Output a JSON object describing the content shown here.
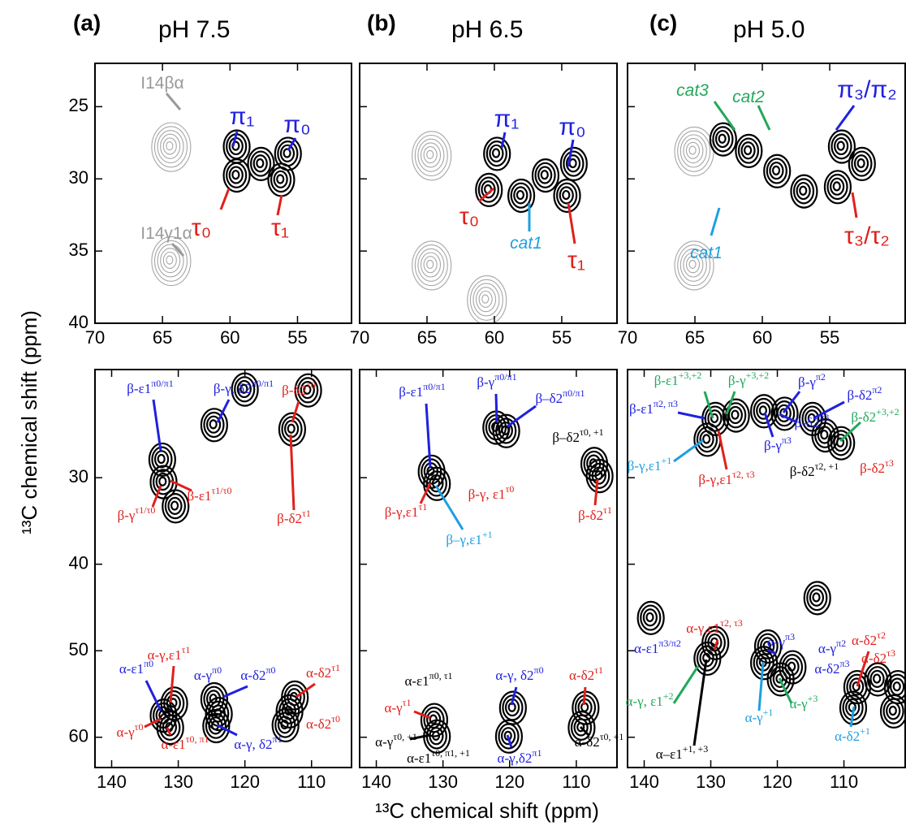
{
  "chart_data": [
    {
      "type": "contour",
      "panel_label": "(a)",
      "title": "pH 7.5",
      "ylabel": "¹³C chemical shift (ppm)",
      "xlim": [
        70,
        51
      ],
      "xticks": [
        70,
        65,
        60,
        55
      ],
      "ylim": [
        22,
        40
      ],
      "yticks": [
        25,
        30,
        35,
        40
      ],
      "ytick_labels": true,
      "peaks": [
        {
          "color": "#a6a6a6",
          "x": [
            64.5,
            64.5
          ],
          "y": [
            27.7,
            35.6
          ]
        },
        {
          "color": "#000000",
          "x": [
            59.6,
            59.6,
            56.3,
            55.8,
            57.8
          ],
          "y": [
            27.7,
            29.7,
            30.0,
            28.2,
            28.9
          ]
        }
      ],
      "annotations": [
        {
          "text": "I14βα",
          "color": "#999999"
        },
        {
          "text": "I14γ1α",
          "color": "#999999"
        },
        {
          "text": "π₁",
          "color": "#2020e0"
        },
        {
          "text": "π₀",
          "color": "#2020e0"
        },
        {
          "text": "τ₀",
          "color": "#e0201c"
        },
        {
          "text": "τ₁",
          "color": "#e0201c"
        }
      ]
    },
    {
      "type": "contour",
      "panel_label": "(b)",
      "title": "pH 6.5",
      "xlim": [
        70,
        50.9
      ],
      "xticks": [
        70,
        65,
        60,
        55
      ],
      "ylim": [
        22,
        40
      ],
      "yticks": [
        25,
        30,
        35,
        40
      ],
      "ytick_labels": false,
      "peaks": [
        {
          "color": "#a6a6a6",
          "x": [
            64.8,
            64.8,
            60.7
          ],
          "y": [
            28.3,
            35.9,
            38.3
          ]
        },
        {
          "color": "#000000",
          "x": [
            59.9,
            54.7,
            58.1,
            60.5,
            54.2,
            56.3
          ],
          "y": [
            28.2,
            31.1,
            31.1,
            30.7,
            28.9,
            29.7
          ]
        }
      ],
      "annotations": [
        {
          "text": "π₁",
          "color": "#2020e0"
        },
        {
          "text": "π₀",
          "color": "#2020e0"
        },
        {
          "text": "τ₀",
          "color": "#e0201c"
        },
        {
          "text": "cat1",
          "color": "#1e9fe0",
          "style": "italic"
        },
        {
          "text": "τ₁",
          "color": "#e0201c"
        }
      ]
    },
    {
      "type": "contour",
      "panel_label": "(c)",
      "title": "pH 5.0",
      "xlim": [
        70,
        49.4
      ],
      "xticks": [
        70,
        65,
        60,
        55
      ],
      "ylim": [
        22,
        40
      ],
      "yticks": [
        25,
        30,
        35,
        40
      ],
      "ytick_labels": false,
      "peaks": [
        {
          "color": "#a6a6a6",
          "x": [
            65.2,
            65.2
          ],
          "y": [
            28.0,
            35.9
          ]
        },
        {
          "color": "#000000",
          "x": [
            63.0,
            61.1,
            59.0,
            57.0,
            54.5,
            54.2,
            52.7
          ],
          "y": [
            27.2,
            28.0,
            29.4,
            30.8,
            30.5,
            27.7,
            28.9
          ]
        }
      ],
      "annotations": [
        {
          "text": "cat3",
          "color": "#22a85a",
          "style": "italic"
        },
        {
          "text": "cat2",
          "color": "#22a85a",
          "style": "italic"
        },
        {
          "text": "π₃/π₂",
          "color": "#2020e0"
        },
        {
          "text": "cat1",
          "color": "#1e9fe0",
          "style": "italic"
        },
        {
          "text": "τ₃/τ₂",
          "color": "#e0201c"
        }
      ]
    },
    {
      "type": "contour",
      "xlim": [
        142.5,
        104
      ],
      "xticks": [
        140,
        130,
        120,
        110
      ],
      "ylim": [
        17.5,
        63.5
      ],
      "yticks": [
        30,
        40,
        50,
        60
      ],
      "ytick_labels": true,
      "peaks": [
        {
          "color": "#000000",
          "x": [
            132.6,
            132.4,
            124.8,
            113.1,
            110.7,
            120.2,
            130.6,
            132.4,
            131.4,
            130.8,
            124.8,
            124.1,
            124.5,
            113.5,
            112.7,
            114.1
          ],
          "y": [
            27.8,
            30.4,
            23.8,
            24.3,
            19.8,
            19.7,
            33.2,
            57.4,
            58.8,
            56.0,
            55.5,
            57.2,
            58.6,
            56.9,
            55.3,
            58.5
          ]
        }
      ],
      "annotations": [
        {
          "text": "β-ε1",
          "sup": "π0/π1",
          "color": "#2020e0"
        },
        {
          "text": "β-γ, δ2",
          "sup": "π0/π1",
          "color": "#2020e0"
        },
        {
          "text": "β-δ2",
          "sup": "τ0",
          "color": "#e0201c"
        },
        {
          "text": "β-γ",
          "sup": "τ1/τ0",
          "color": "#e0201c"
        },
        {
          "text": "β-ε1",
          "sup": "τ1/τ0",
          "color": "#e0201c"
        },
        {
          "text": "β-δ2",
          "sup": "τ1",
          "color": "#e0201c"
        },
        {
          "text": "α-γ,ε1",
          "sup": "τ1",
          "color": "#e0201c"
        },
        {
          "text": "α-ε1",
          "sup": "π0",
          "color": "#2020e0"
        },
        {
          "text": "α-γ",
          "sup": "π0",
          "color": "#2020e0"
        },
        {
          "text": "α-δ2",
          "sup": "π0",
          "color": "#2020e0"
        },
        {
          "text": "α-δ2",
          "sup": "τ1",
          "color": "#e0201c"
        },
        {
          "text": "α-γ",
          "sup": "τ0",
          "color": "#e0201c"
        },
        {
          "text": "α-ε1",
          "sup": "τ0, π1",
          "color": "#e0201c"
        },
        {
          "text": "α-γ, δ2",
          "sup": "π1",
          "color": "#2020e0"
        },
        {
          "text": "α-δ2",
          "sup": "τ0",
          "color": "#e0201c"
        }
      ]
    },
    {
      "type": "contour",
      "xlabel": "¹³C chemical shift (ppm)",
      "xlim": [
        142.5,
        103.9
      ],
      "xticks": [
        140,
        130,
        120,
        110
      ],
      "ylim": [
        17.5,
        63.5
      ],
      "yticks": [
        30,
        40,
        50,
        60
      ],
      "ytick_labels": false,
      "peaks": [
        {
          "color": "#000000",
          "x": [
            131.9,
            131.1,
            122.2,
            120.7,
            106.7,
            107.5,
            131.5,
            131.1,
            119.7,
            120.3,
            108.8,
            109.4
          ],
          "y": [
            29.2,
            30.6,
            24.1,
            24.5,
            29.7,
            28.3,
            57.9,
            59.8,
            56.5,
            59.8,
            56.5,
            58.8
          ]
        }
      ],
      "annotations": [
        {
          "text": "β-ε1",
          "sup": "π0/π1",
          "color": "#2020e0"
        },
        {
          "text": "β-γ",
          "sup": "π0/π1",
          "color": "#2020e0"
        },
        {
          "text": "β–δ2",
          "sup": "π0/π1",
          "color": "#2020e0"
        },
        {
          "text": "β–δ2",
          "sup": "τ0, +1",
          "color": "#000000"
        },
        {
          "text": "β-γ,ε1",
          "sup": "τ1",
          "color": "#e0201c"
        },
        {
          "text": "β-γ, ε1",
          "sup": "τ0",
          "color": "#e0201c"
        },
        {
          "text": "β-δ2",
          "sup": "τ1",
          "color": "#e0201c"
        },
        {
          "text": "β–γ,ε1",
          "sup": "+1",
          "color": "#1e9fe0"
        },
        {
          "text": "α-ε1",
          "sup": "π0, τ1",
          "color": "#000000"
        },
        {
          "text": "α-γ, δ2",
          "sup": "π0",
          "color": "#2020e0"
        },
        {
          "text": "α-δ2",
          "sup": "τ1",
          "color": "#e0201c"
        },
        {
          "text": "α-γ",
          "sup": "τ1",
          "color": "#e0201c"
        },
        {
          "text": "α-γ",
          "sup": "τ0, +1",
          "color": "#000000"
        },
        {
          "text": "α-δ2",
          "sup": "τ0, +1",
          "color": "#000000"
        },
        {
          "text": "α-ε1",
          "sup": "τ0, π1, +1",
          "color": "#000000"
        },
        {
          "text": "α-γ,δ2",
          "sup": "π1",
          "color": "#2020e0"
        }
      ]
    },
    {
      "type": "contour",
      "xlim": [
        142.5,
        100.8
      ],
      "xticks": [
        140,
        130,
        120,
        110
      ],
      "ylim": [
        17.5,
        63.5
      ],
      "yticks": [
        30,
        40,
        50,
        60
      ],
      "ytick_labels": false,
      "peaks": [
        {
          "color": "#000000",
          "x": [
            130.7,
            129.5,
            126.4,
            122.2,
            119.1,
            114.9,
            113.0,
            110.6,
            129.5,
            130.7,
            121.6,
            122.2,
            117.9,
            119.7,
            108.2,
            108.8,
            105.1,
            102.1,
            102.7,
            139.2,
            114.2
          ],
          "y": [
            25.5,
            23.1,
            22.7,
            22.2,
            22.5,
            23.1,
            25.0,
            25.9,
            49.0,
            50.8,
            49.4,
            51.3,
            51.8,
            53.2,
            54.1,
            56.5,
            53.2,
            54.1,
            56.9,
            46.1,
            43.8
          ]
        }
      ],
      "annotations": [
        {
          "text": "β-ε1",
          "sup": "+3,+2",
          "color": "#22a85a"
        },
        {
          "text": "β-γ",
          "sup": "+3,+2",
          "color": "#22a85a"
        },
        {
          "text": "β-γ",
          "sup": "π2",
          "color": "#2020e0"
        },
        {
          "text": "β-ε1",
          "sup": "π2, π3",
          "color": "#2020e0"
        },
        {
          "text": "β-δ2",
          "sup": "π2",
          "color": "#2020e0"
        },
        {
          "text": "β-δ2",
          "sup": "+3,+2",
          "color": "#22a85a"
        },
        {
          "text": "β-δ2",
          "sup": "π3",
          "color": "#2020e0"
        },
        {
          "text": "β-γ",
          "sup": "π3",
          "color": "#2020e0"
        },
        {
          "text": "β-γ,ε1",
          "sup": "+1",
          "color": "#1e9fe0"
        },
        {
          "text": "β-γ,ε1",
          "sup": "τ2, τ3",
          "color": "#e0201c"
        },
        {
          "text": "β-δ2",
          "sup": "τ2, +1",
          "color": "#000000"
        },
        {
          "text": "β-δ2",
          "sup": "τ3",
          "color": "#e0201c"
        },
        {
          "text": "α-γ,ε1",
          "sup": "τ2, τ3",
          "color": "#e0201c"
        },
        {
          "text": "α-ε1",
          "sup": "π3/π2",
          "color": "#2020e0"
        },
        {
          "text": "α-γ",
          "sup": "π3",
          "color": "#2020e0"
        },
        {
          "text": "α-γ",
          "sup": "π2",
          "color": "#2020e0"
        },
        {
          "text": "α-δ2",
          "sup": "π3",
          "color": "#2020e0"
        },
        {
          "text": "α-δ2",
          "sup": "τ2",
          "color": "#e0201c"
        },
        {
          "text": "α-δ2",
          "sup": "τ3",
          "color": "#e0201c"
        },
        {
          "text": "α-γ, ε1",
          "sup": "+2",
          "color": "#22a85a"
        },
        {
          "text": "α-γ",
          "sup": "+3",
          "color": "#22a85a"
        },
        {
          "text": "α-γ",
          "sup": "+1",
          "color": "#1e9fe0"
        },
        {
          "text": "α-δ2",
          "sup": "+1",
          "color": "#1e9fe0"
        },
        {
          "text": "α–ε1",
          "sup": "+1, +3",
          "color": "#000000"
        }
      ]
    }
  ]
}
